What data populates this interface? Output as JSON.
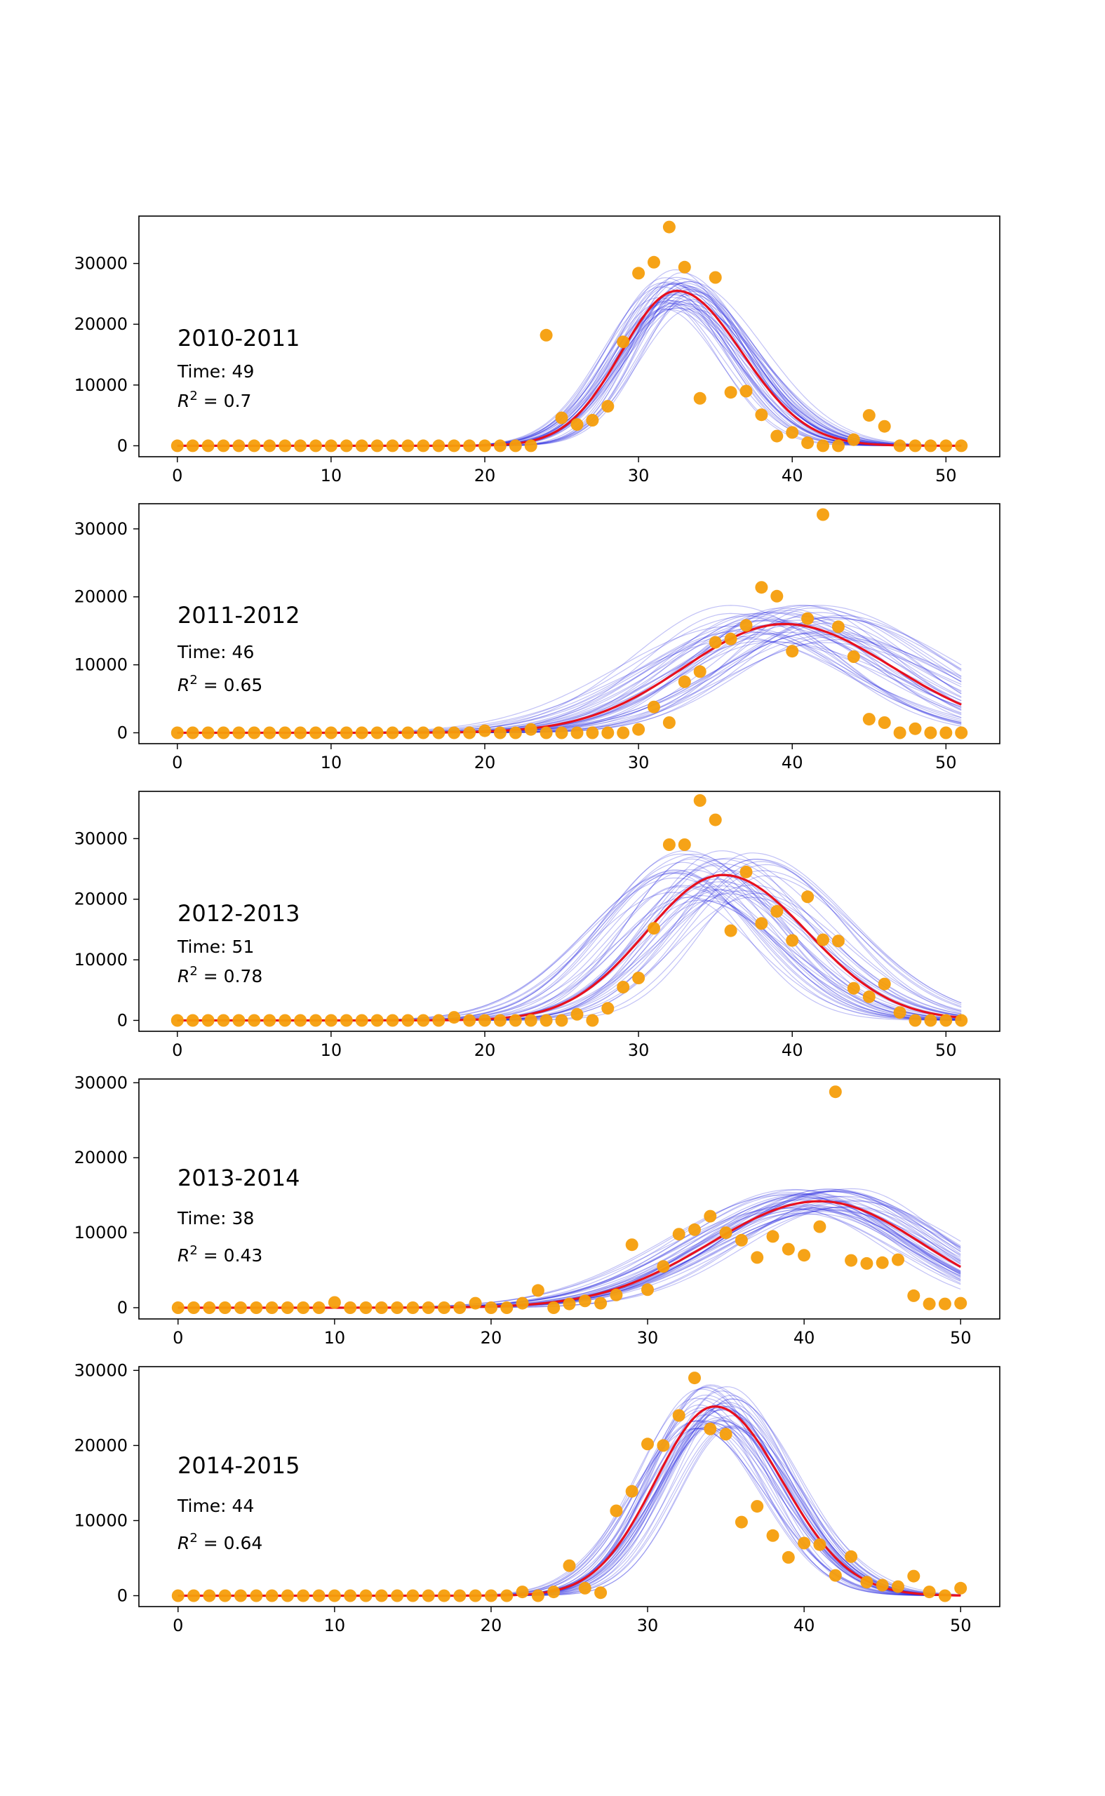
{
  "colors": {
    "observed": "#f59e0b",
    "ensemble": "#2222dd",
    "best_fit": "#e8101e",
    "axes": "#000000",
    "background": "#ffffff"
  },
  "chart_data": [
    {
      "type": "scatter",
      "season": "2010-2011",
      "time_label": "Time: 49",
      "r2_label": "= 0.7",
      "xlim": [
        -2.5,
        53.5
      ],
      "ylim": [
        -1800,
        37800
      ],
      "xticks": [
        0,
        10,
        20,
        30,
        40,
        50
      ],
      "yticks": [
        0,
        10000,
        20000,
        30000
      ],
      "x": [
        0,
        1,
        2,
        3,
        4,
        5,
        6,
        7,
        8,
        9,
        10,
        11,
        12,
        13,
        14,
        15,
        16,
        17,
        18,
        19,
        20,
        21,
        22,
        23,
        24,
        25,
        26,
        27,
        28,
        29,
        30,
        31,
        32,
        33,
        34,
        35,
        36,
        37,
        38,
        39,
        40,
        41,
        42,
        43,
        44,
        45,
        46,
        47,
        48,
        49,
        50,
        51
      ],
      "observed": [
        0,
        0,
        0,
        0,
        0,
        0,
        0,
        0,
        0,
        0,
        0,
        0,
        0,
        0,
        0,
        0,
        0,
        0,
        0,
        0,
        0,
        0,
        0,
        0,
        18200,
        4600,
        3500,
        4200,
        6500,
        17100,
        28400,
        30200,
        36000,
        29400,
        7800,
        27700,
        8800,
        9000,
        5100,
        1600,
        2200,
        500,
        0,
        0,
        1000,
        5000,
        3200,
        0,
        0,
        0,
        0,
        0
      ],
      "fit": {
        "peak": 25500,
        "center": 32.5,
        "rise": 3.6,
        "fall": 4.2
      },
      "ensemble_spread": {
        "peak": 0.12,
        "center": 0.8,
        "width": 0.1
      }
    },
    {
      "type": "scatter",
      "season": "2011-2012",
      "time_label": "Time: 46",
      "r2_label": "= 0.65",
      "xlim": [
        -2.5,
        53.5
      ],
      "ylim": [
        -1600,
        33700
      ],
      "xticks": [
        0,
        10,
        20,
        30,
        40,
        50
      ],
      "yticks": [
        0,
        10000,
        20000,
        30000
      ],
      "x": [
        0,
        1,
        2,
        3,
        4,
        5,
        6,
        7,
        8,
        9,
        10,
        11,
        12,
        13,
        14,
        15,
        16,
        17,
        18,
        19,
        20,
        21,
        22,
        23,
        24,
        25,
        26,
        27,
        28,
        29,
        30,
        31,
        32,
        33,
        34,
        35,
        36,
        37,
        38,
        39,
        40,
        41,
        42,
        43,
        44,
        45,
        46,
        47,
        48,
        49,
        50,
        51
      ],
      "observed": [
        0,
        0,
        0,
        0,
        0,
        0,
        0,
        0,
        0,
        0,
        0,
        0,
        0,
        0,
        0,
        0,
        0,
        0,
        0,
        0,
        300,
        0,
        0,
        500,
        0,
        0,
        0,
        0,
        0,
        0,
        500,
        3800,
        1500,
        7500,
        9000,
        13300,
        13800,
        15800,
        21400,
        20100,
        12000,
        16800,
        32100,
        15600,
        11200,
        2000,
        1500,
        0,
        600,
        0,
        0,
        0
      ],
      "fit": {
        "peak": 16000,
        "center": 39.5,
        "rise": 6.5,
        "fall": 7.0
      },
      "ensemble_spread": {
        "peak": 0.15,
        "center": 2.5,
        "width": 0.13
      }
    },
    {
      "type": "scatter",
      "season": "2012-2013",
      "time_label": "Time: 51",
      "r2_label": "= 0.78",
      "xlim": [
        -2.5,
        53.5
      ],
      "ylim": [
        -1800,
        37800
      ],
      "xticks": [
        0,
        10,
        20,
        30,
        40,
        50
      ],
      "yticks": [
        0,
        10000,
        20000,
        30000
      ],
      "x": [
        0,
        1,
        2,
        3,
        4,
        5,
        6,
        7,
        8,
        9,
        10,
        11,
        12,
        13,
        14,
        15,
        16,
        17,
        18,
        19,
        20,
        21,
        22,
        23,
        24,
        25,
        26,
        27,
        28,
        29,
        30,
        31,
        32,
        33,
        34,
        35,
        36,
        37,
        38,
        39,
        40,
        41,
        42,
        43,
        44,
        45,
        46,
        47,
        48,
        49,
        50,
        51
      ],
      "observed": [
        0,
        0,
        0,
        0,
        0,
        0,
        0,
        0,
        0,
        0,
        0,
        0,
        0,
        0,
        0,
        0,
        0,
        0,
        500,
        0,
        0,
        0,
        0,
        0,
        0,
        0,
        1000,
        0,
        2000,
        5500,
        7000,
        15200,
        29000,
        29000,
        36300,
        33100,
        14800,
        24500,
        16000,
        18000,
        13200,
        20400,
        13300,
        13100,
        5300,
        3900,
        6000,
        1300,
        0,
        0,
        0,
        0
      ],
      "fit": {
        "peak": 24000,
        "center": 35.5,
        "rise": 5.0,
        "fall": 5.5
      },
      "ensemble_spread": {
        "peak": 0.15,
        "center": 2.2,
        "width": 0.12
      }
    },
    {
      "type": "scatter",
      "season": "2013-2014",
      "time_label": "Time: 38",
      "r2_label": "= 0.43",
      "xlim": [
        -2.5,
        52.5
      ],
      "ylim": [
        -1500,
        30500
      ],
      "xticks": [
        0,
        10,
        20,
        30,
        40,
        50
      ],
      "yticks": [
        0,
        10000,
        20000,
        30000
      ],
      "x": [
        0,
        1,
        2,
        3,
        4,
        5,
        6,
        7,
        8,
        9,
        10,
        11,
        12,
        13,
        14,
        15,
        16,
        17,
        18,
        19,
        20,
        21,
        22,
        23,
        24,
        25,
        26,
        27,
        28,
        29,
        30,
        31,
        32,
        33,
        34,
        35,
        36,
        37,
        38,
        39,
        40,
        41,
        42,
        43,
        44,
        45,
        46,
        47,
        48,
        49,
        50
      ],
      "observed": [
        0,
        0,
        0,
        0,
        0,
        0,
        0,
        0,
        0,
        0,
        700,
        0,
        0,
        0,
        0,
        0,
        0,
        0,
        0,
        600,
        0,
        0,
        600,
        2300,
        0,
        500,
        900,
        600,
        1700,
        8400,
        2400,
        5500,
        9800,
        10400,
        12200,
        10000,
        9000,
        6700,
        9500,
        7800,
        7000,
        10800,
        28800,
        6300,
        5900,
        6000,
        6400,
        1600,
        500,
        500,
        600
      ],
      "fit": {
        "peak": 14200,
        "center": 41.0,
        "rise": 7.0,
        "fall": 6.5
      },
      "ensemble_spread": {
        "peak": 0.1,
        "center": 1.5,
        "width": 0.08
      }
    },
    {
      "type": "scatter",
      "season": "2014-2015",
      "time_label": "Time: 44",
      "r2_label": "= 0.64",
      "xlim": [
        -2.5,
        52.5
      ],
      "ylim": [
        -1450,
        30500
      ],
      "xticks": [
        0,
        10,
        20,
        30,
        40,
        50
      ],
      "yticks": [
        0,
        10000,
        20000,
        30000
      ],
      "x": [
        0,
        1,
        2,
        3,
        4,
        5,
        6,
        7,
        8,
        9,
        10,
        11,
        12,
        13,
        14,
        15,
        16,
        17,
        18,
        19,
        20,
        21,
        22,
        23,
        24,
        25,
        26,
        27,
        28,
        29,
        30,
        31,
        32,
        33,
        34,
        35,
        36,
        37,
        38,
        39,
        40,
        41,
        42,
        43,
        44,
        45,
        46,
        47,
        48,
        49,
        50
      ],
      "observed": [
        0,
        0,
        0,
        0,
        0,
        0,
        0,
        0,
        0,
        0,
        0,
        0,
        0,
        0,
        0,
        0,
        0,
        0,
        0,
        0,
        0,
        0,
        500,
        0,
        500,
        4000,
        1000,
        400,
        11300,
        13900,
        20200,
        20000,
        24000,
        29000,
        22200,
        21500,
        9800,
        11900,
        8000,
        5100,
        7000,
        6800,
        2700,
        5200,
        1800,
        1400,
        1200,
        2600,
        500,
        0,
        1000
      ],
      "fit": {
        "peak": 25200,
        "center": 34.3,
        "rise": 3.8,
        "fall": 4.3
      },
      "ensemble_spread": {
        "peak": 0.1,
        "center": 0.9,
        "width": 0.08
      }
    }
  ]
}
